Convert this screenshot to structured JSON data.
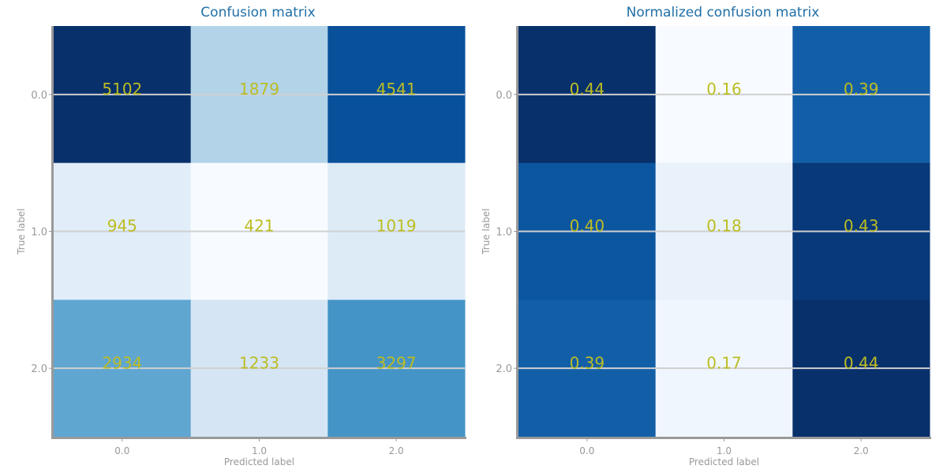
{
  "chart_data": [
    {
      "type": "heatmap",
      "title": "Confusion matrix",
      "xlabel": "Predicted label",
      "ylabel": "True label",
      "x_categories": [
        "0.0",
        "1.0",
        "2.0"
      ],
      "y_categories": [
        "0.0",
        "1.0",
        "2.0"
      ],
      "values": [
        [
          5102,
          1879,
          4541
        ],
        [
          945,
          421,
          1019
        ],
        [
          2934,
          1233,
          3297
        ]
      ],
      "value_labels": [
        [
          "5102",
          "1879",
          "4541"
        ],
        [
          "945",
          "421",
          "1019"
        ],
        [
          "2934",
          "1233",
          "3297"
        ]
      ],
      "colormap": "Blues",
      "grid": true
    },
    {
      "type": "heatmap",
      "title": "Normalized confusion matrix",
      "xlabel": "Predicted label",
      "ylabel": "True label",
      "x_categories": [
        "0.0",
        "1.0",
        "2.0"
      ],
      "y_categories": [
        "0.0",
        "1.0",
        "2.0"
      ],
      "values": [
        [
          0.44,
          0.16,
          0.39
        ],
        [
          0.4,
          0.18,
          0.43
        ],
        [
          0.39,
          0.17,
          0.44
        ]
      ],
      "value_labels": [
        [
          "0.44",
          "0.16",
          "0.39"
        ],
        [
          "0.40",
          "0.18",
          "0.43"
        ],
        [
          "0.39",
          "0.17",
          "0.44"
        ]
      ],
      "colormap": "Blues",
      "grid": true
    }
  ],
  "colors": {
    "title": "#1f6fa8",
    "value_text": "#bcbd22",
    "tick_text": "#999999",
    "spine": "#999999",
    "gridline": "#d0d0d0",
    "cmap_low": "#f7fbff",
    "cmap_high": "#08306b"
  }
}
